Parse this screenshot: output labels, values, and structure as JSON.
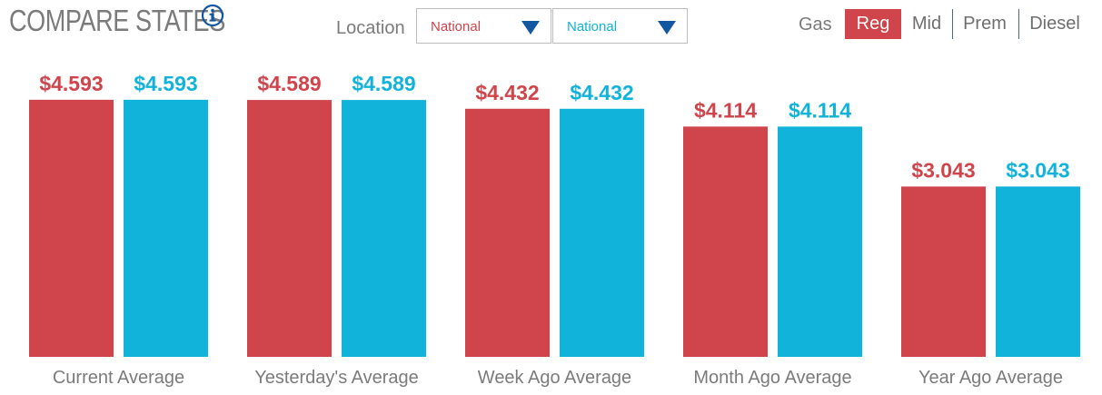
{
  "header": {
    "title": "COMPARE STATES",
    "location_label": "Location",
    "location_a": "National",
    "location_b": "National",
    "gas_label": "Gas",
    "grades": [
      "Reg",
      "Mid",
      "Prem",
      "Diesel"
    ],
    "selected_grade": "Reg"
  },
  "colors": {
    "series_a": "#d0444b",
    "series_b": "#11b3da",
    "axis_text": "#7b7b7b",
    "dropdown_arrow": "#1357a0"
  },
  "icons": {
    "info": "info-icon",
    "dropdown": "triangle-down-icon"
  },
  "chart_data": {
    "type": "bar",
    "categories": [
      "Current Average",
      "Yesterday's Average",
      "Week Ago Average",
      "Month Ago Average",
      "Year Ago Average"
    ],
    "series": [
      {
        "values": [
          4.593,
          4.589,
          4.432,
          4.114,
          3.043
        ]
      },
      {
        "values": [
          4.593,
          4.589,
          4.432,
          4.114,
          3.043
        ]
      }
    ],
    "value_labels": [
      [
        "$4.593",
        "$4.589",
        "$4.432",
        "$4.114",
        "$3.043"
      ],
      [
        "$4.593",
        "$4.589",
        "$4.432",
        "$4.114",
        "$3.043"
      ]
    ],
    "title": "",
    "xlabel": "",
    "ylabel": "",
    "ylim": [
      0,
      4.98
    ],
    "grid": false,
    "legend": "none"
  }
}
